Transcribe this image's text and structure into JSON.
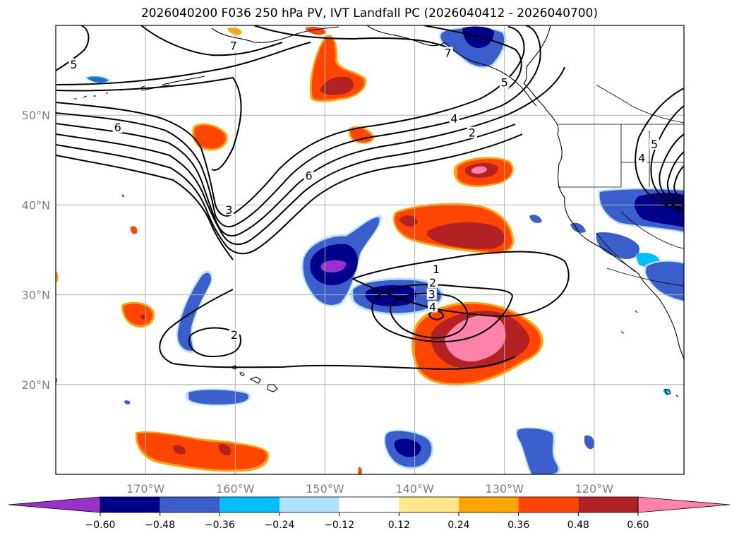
{
  "title": "2026040200 F036 250 hPa PV, IVT Landfall PC (2026040412 - 2026040700)",
  "map": {
    "projection": "plate-carree",
    "lon_range": [
      -180,
      -110
    ],
    "lat_range": [
      10,
      60
    ],
    "lat_ticks": [
      {
        "value": 20,
        "label": "20°N"
      },
      {
        "value": 30,
        "label": "30°N"
      },
      {
        "value": 40,
        "label": "40°N"
      },
      {
        "value": 50,
        "label": "50°N"
      }
    ],
    "lon_ticks": [
      {
        "value": -170,
        "label": "170°W"
      },
      {
        "value": -160,
        "label": "160°W"
      },
      {
        "value": -150,
        "label": "150°W"
      },
      {
        "value": -140,
        "label": "140°W"
      },
      {
        "value": -130,
        "label": "130°W"
      },
      {
        "value": -120,
        "label": "120°W"
      }
    ],
    "grid": true,
    "pv_contours": [
      {
        "label": "1",
        "lon": -137.6,
        "lat": 32.8
      },
      {
        "label": "2",
        "lon": -138.0,
        "lat": 31.3
      },
      {
        "label": "3",
        "lon": -138.1,
        "lat": 30.0
      },
      {
        "label": "4",
        "lon": -138.0,
        "lat": 28.6
      },
      {
        "label": "2",
        "lon": -160.1,
        "lat": 25.5
      },
      {
        "label": "3",
        "lon": -160.7,
        "lat": 39.4
      },
      {
        "label": "6",
        "lon": -151.8,
        "lat": 43.2
      },
      {
        "label": "6",
        "lon": -173.1,
        "lat": 48.6
      },
      {
        "label": "5",
        "lon": -178.0,
        "lat": 55.6
      },
      {
        "label": "7",
        "lon": -160.2,
        "lat": 57.7
      },
      {
        "label": "7",
        "lon": -136.3,
        "lat": 56.9
      },
      {
        "label": "5",
        "lon": -130.0,
        "lat": 53.6
      },
      {
        "label": "4",
        "lon": -135.6,
        "lat": 49.6
      },
      {
        "label": "2",
        "lon": -133.6,
        "lat": 48.0
      },
      {
        "label": "4",
        "lon": -114.7,
        "lat": 45.2
      },
      {
        "label": "5",
        "lon": -113.3,
        "lat": 46.7
      }
    ]
  },
  "colorbar": {
    "ticks": [
      "−0.60",
      "−0.48",
      "−0.36",
      "−0.24",
      "−0.12",
      "0.12",
      "0.24",
      "0.36",
      "0.48",
      "0.60"
    ],
    "colors": [
      "#9932cc",
      "#00008b",
      "#3a5fcd",
      "#00bfff",
      "#b0e2ff",
      "#ffffff",
      "#ffe88c",
      "#ffa500",
      "#ff4500",
      "#b22222",
      "#ff82ab"
    ]
  }
}
